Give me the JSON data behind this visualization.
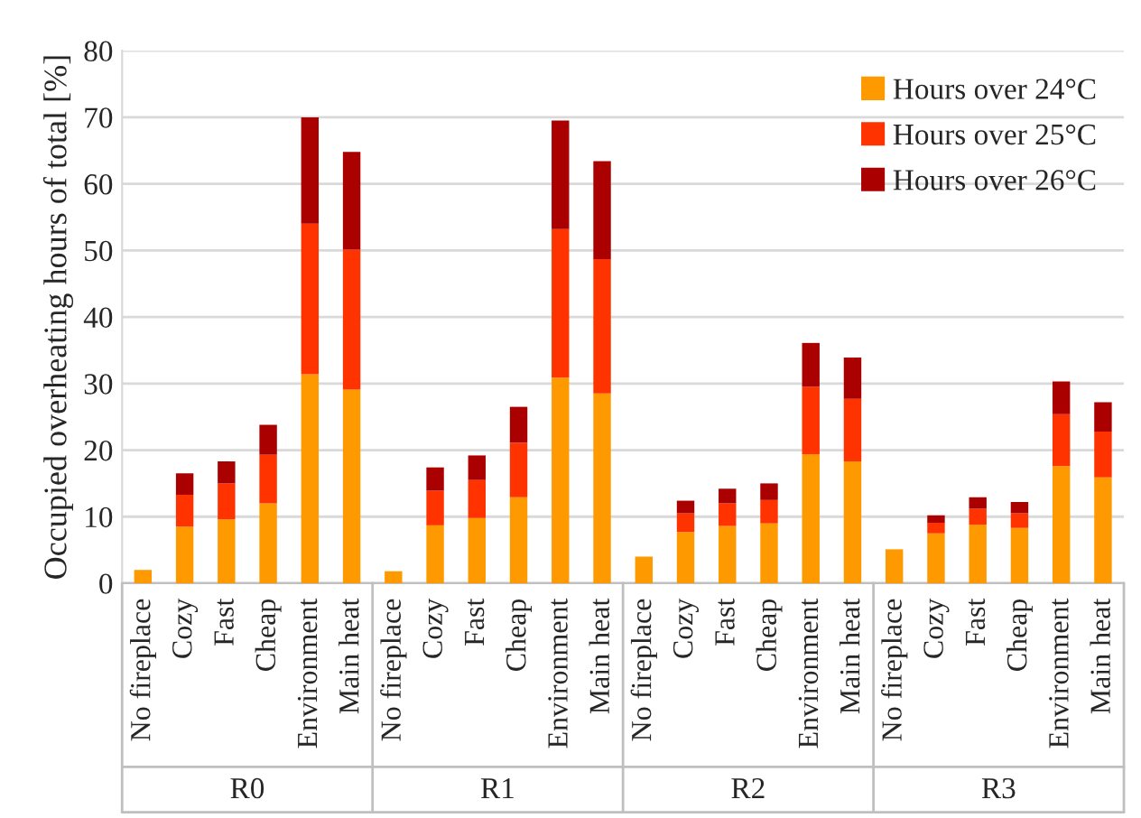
{
  "chart_data": {
    "type": "bar",
    "stacked": true,
    "ylabel": "Occupied overheating hours of total [%]",
    "categories": [
      "No fireplace",
      "Cozy",
      "Fast",
      "Cheap",
      "Environment",
      "Main heat",
      "No fireplace",
      "Cozy",
      "Fast",
      "Cheap",
      "Environment",
      "Main heat",
      "No fireplace",
      "Cozy",
      "Fast",
      "Cheap",
      "Environment",
      "Main heat",
      "No fireplace",
      "Cozy",
      "Fast",
      "Cheap",
      "Environment",
      "Main heat"
    ],
    "series": [
      {
        "name": "Hours over 24°C",
        "color": "#ff9900",
        "values": [
          2.0,
          8.5,
          9.6,
          12.0,
          31.4,
          29.1,
          1.8,
          8.7,
          9.8,
          12.9,
          30.9,
          28.5,
          4.0,
          7.7,
          8.6,
          9.0,
          19.4,
          18.3,
          5.1,
          7.5,
          8.8,
          8.3,
          17.6,
          15.9
        ]
      },
      {
        "name": "Hours over 25°C",
        "color": "#ff3300",
        "values": [
          null,
          4.8,
          5.4,
          7.3,
          22.6,
          21.0,
          null,
          5.2,
          5.7,
          8.2,
          22.3,
          20.2,
          null,
          2.8,
          3.4,
          3.5,
          10.1,
          9.4,
          null,
          1.6,
          2.4,
          2.2,
          7.8,
          6.9
        ]
      },
      {
        "name": "Hours over 26°C",
        "color": "#aa0000",
        "values": [
          null,
          3.2,
          3.3,
          4.5,
          16.0,
          14.7,
          null,
          3.5,
          3.7,
          5.4,
          16.3,
          14.7,
          null,
          1.9,
          2.2,
          2.5,
          6.6,
          6.2,
          null,
          1.1,
          1.7,
          1.7,
          4.9,
          4.4
        ]
      }
    ],
    "annotations": [
      "R0",
      "R1",
      "R2",
      "R3"
    ],
    "ylim": [
      0,
      80
    ],
    "yticks": [
      0,
      10,
      20,
      30,
      40,
      50,
      60,
      70,
      80
    ],
    "grid": "y",
    "legend": "top right"
  }
}
